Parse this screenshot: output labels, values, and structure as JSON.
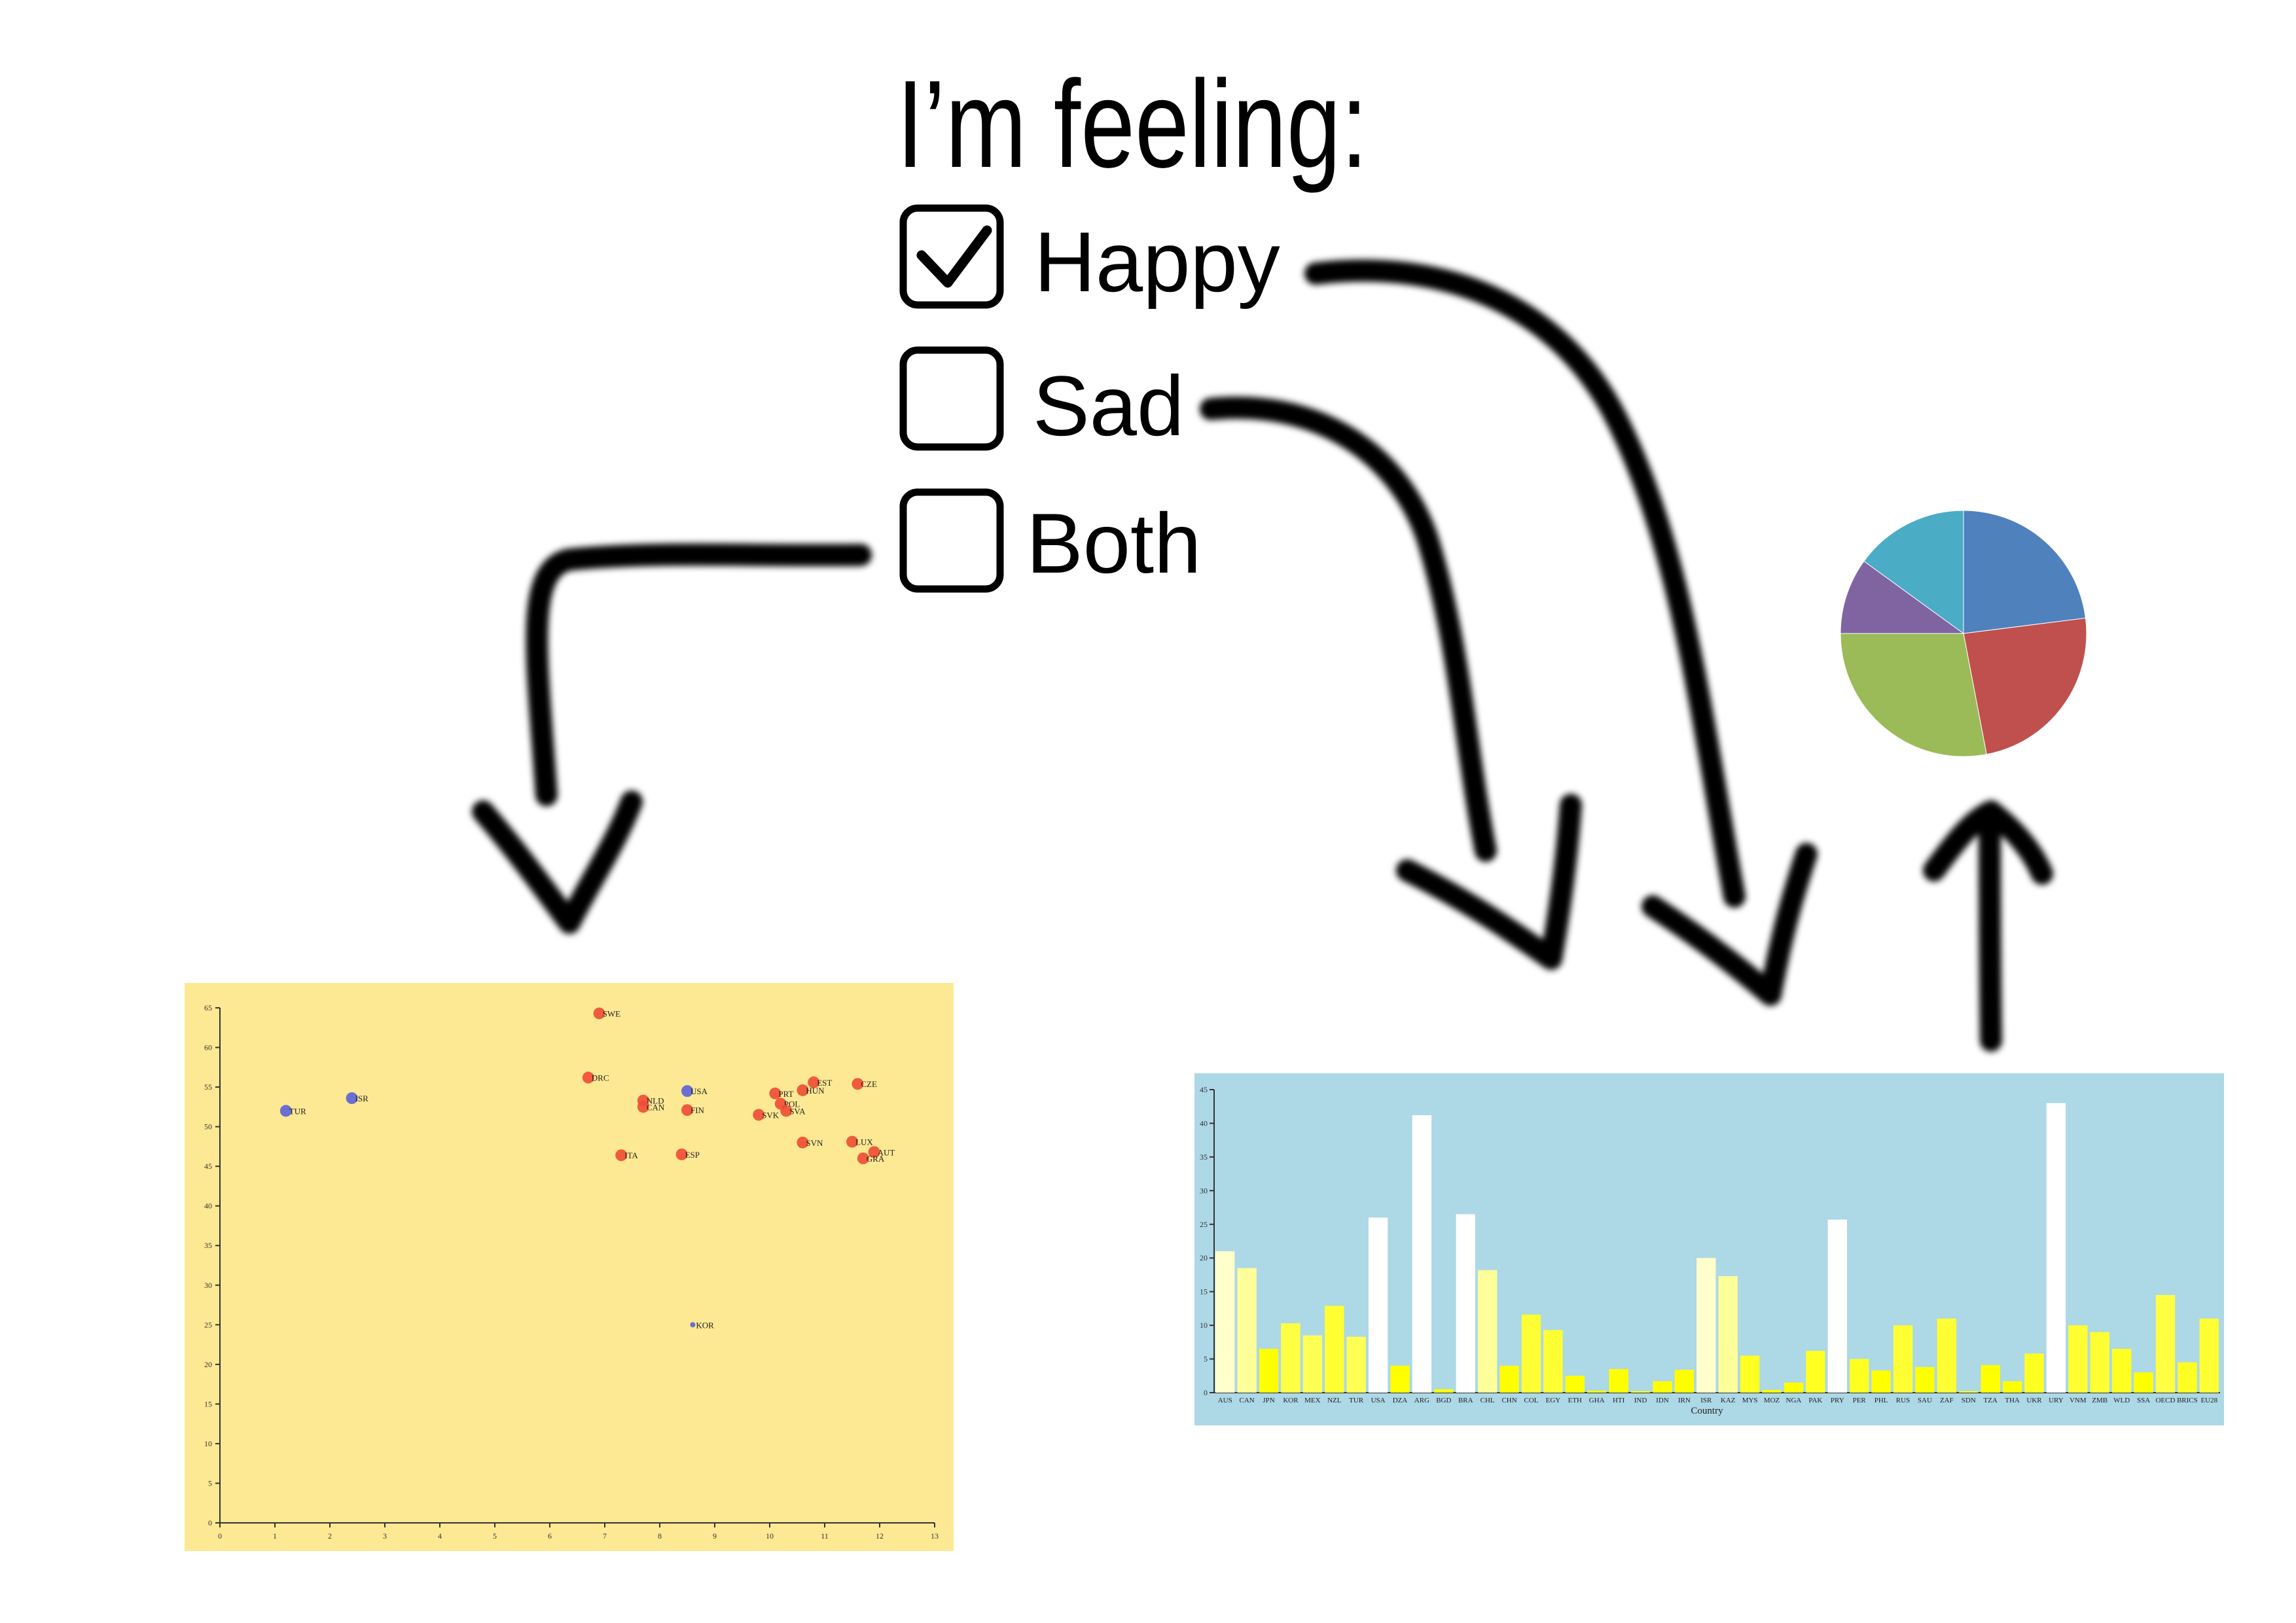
{
  "heading": "I’m feeling:",
  "options": [
    {
      "label": "Happy",
      "checked": true
    },
    {
      "label": "Sad",
      "checked": false
    },
    {
      "label": "Both",
      "checked": false
    }
  ],
  "charts": [
    {
      "type": "scatter",
      "background": "#fde993",
      "xlim": [
        0,
        13
      ],
      "ylim": [
        0,
        65
      ],
      "xticks": [
        0,
        1,
        2,
        3,
        4,
        5,
        6,
        7,
        8,
        9,
        10,
        11,
        12,
        13
      ],
      "yticks": [
        0,
        5,
        10,
        15,
        20,
        25,
        30,
        35,
        40,
        45,
        50,
        55,
        60,
        65
      ],
      "series_colors": {
        "red": "#ee4b34",
        "blue": "#5b62d8"
      },
      "points": [
        {
          "label": "TUR",
          "x": 1.2,
          "y": 52,
          "color": "blue"
        },
        {
          "label": "ISR",
          "x": 2.4,
          "y": 53.6,
          "color": "blue"
        },
        {
          "label": "SWE",
          "x": 6.9,
          "y": 64.3,
          "color": "red"
        },
        {
          "label": "DRC",
          "x": 6.7,
          "y": 56.2,
          "color": "red"
        },
        {
          "label": "NLD",
          "x": 7.7,
          "y": 53.3,
          "color": "red"
        },
        {
          "label": "CAN",
          "x": 7.7,
          "y": 52.5,
          "color": "red"
        },
        {
          "label": "USA",
          "x": 8.5,
          "y": 54.5,
          "color": "blue"
        },
        {
          "label": "FIN",
          "x": 8.5,
          "y": 52.1,
          "color": "red"
        },
        {
          "label": "ITA",
          "x": 7.3,
          "y": 46.4,
          "color": "red"
        },
        {
          "label": "ESP",
          "x": 8.4,
          "y": 46.5,
          "color": "red"
        },
        {
          "label": "KOR",
          "x": 8.6,
          "y": 25,
          "color": "blue"
        },
        {
          "label": "PRT",
          "x": 10.1,
          "y": 54.2,
          "color": "red"
        },
        {
          "label": "POL",
          "x": 10.2,
          "y": 52.9,
          "color": "red"
        },
        {
          "label": "SVK",
          "x": 9.8,
          "y": 51.5,
          "color": "red"
        },
        {
          "label": "SVA",
          "x": 10.3,
          "y": 52,
          "color": "red"
        },
        {
          "label": "EST",
          "x": 10.8,
          "y": 55.6,
          "color": "red"
        },
        {
          "label": "HUN",
          "x": 10.6,
          "y": 54.6,
          "color": "red"
        },
        {
          "label": "CZE",
          "x": 11.6,
          "y": 55.4,
          "color": "red"
        },
        {
          "label": "SVN",
          "x": 10.6,
          "y": 48,
          "color": "red"
        },
        {
          "label": "LUX",
          "x": 11.5,
          "y": 48.1,
          "color": "red"
        },
        {
          "label": "AUT",
          "x": 11.9,
          "y": 46.8,
          "color": "red"
        },
        {
          "label": "GRA",
          "x": 11.7,
          "y": 46,
          "color": "red"
        }
      ]
    },
    {
      "type": "bar",
      "background": "#add8e6",
      "xlabel": "Country",
      "ylim": [
        0,
        45
      ],
      "yticks": [
        0,
        5,
        10,
        15,
        20,
        25,
        30,
        35,
        40,
        45
      ],
      "categories": [
        "AUS",
        "CAN",
        "JPN",
        "KOR",
        "MEX",
        "NZL",
        "TUR",
        "USA",
        "DZA",
        "ARG",
        "BGD",
        "BRA",
        "CHL",
        "CHN",
        "COL",
        "EGY",
        "ETH",
        "GHA",
        "HTI",
        "IND",
        "IDN",
        "IRN",
        "ISR",
        "KAZ",
        "MYS",
        "MOZ",
        "NGA",
        "PAK",
        "PRY",
        "PER",
        "PHL",
        "RUS",
        "SAU",
        "ZAF",
        "SDN",
        "TZA",
        "THA",
        "UKR",
        "URY",
        "VNM",
        "ZMB",
        "WLD",
        "SSA",
        "OECD",
        "BRICS",
        "EU28"
      ],
      "values": [
        21,
        18.5,
        6.5,
        10.3,
        8.5,
        12.9,
        8.3,
        26,
        4,
        41.2,
        0.5,
        26.5,
        18.2,
        4,
        11.6,
        9.3,
        2.5,
        0.3,
        3.5,
        0.2,
        1.7,
        3.4,
        20,
        17.3,
        5.5,
        0.4,
        1.5,
        6.2,
        25.7,
        5,
        3.3,
        10,
        3.8,
        11,
        0.2,
        4.1,
        1.7,
        5.8,
        43,
        10,
        9,
        6.5,
        3,
        14.5,
        4.5,
        11
      ],
      "bar_colors": [
        "#ffffcc",
        "#ffff99",
        "#ffff00",
        "#ffff44",
        "#ffff55",
        "#ffff33",
        "#ffff55",
        "#ffffff",
        "#ffff00",
        "#ffffff",
        "#ffff00",
        "#ffffff",
        "#ffff99",
        "#ffff00",
        "#ffff33",
        "#ffff33",
        "#ffff00",
        "#ffff00",
        "#ffff00",
        "#ffff00",
        "#ffff00",
        "#ffff00",
        "#ffffcc",
        "#ffff99",
        "#ffff22",
        "#ffff00",
        "#ffff00",
        "#ffff22",
        "#ffffff",
        "#ffff22",
        "#ffff00",
        "#ffff33",
        "#ffff00",
        "#ffff33",
        "#ffff00",
        "#ffff00",
        "#ffff00",
        "#ffff22",
        "#ffffff",
        "#ffff33",
        "#ffff33",
        "#ffff22",
        "#ffff00",
        "#ffff44",
        "#ffff22",
        "#ffff33"
      ]
    },
    {
      "type": "pie",
      "slices": [
        {
          "value": 23,
          "color": "#4f81bd"
        },
        {
          "value": 24,
          "color": "#c0504d"
        },
        {
          "value": 28,
          "color": "#9bbb59"
        },
        {
          "value": 10,
          "color": "#8064a2"
        },
        {
          "value": 15,
          "color": "#4bacc6"
        }
      ]
    }
  ]
}
